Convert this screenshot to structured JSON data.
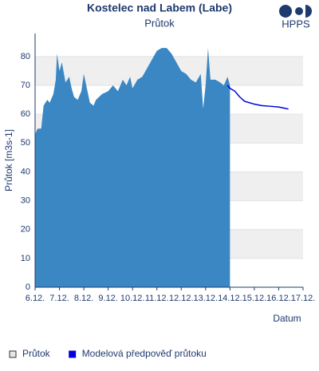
{
  "chart_data": {
    "type": "area",
    "title": "Kostelec nad Labem (Labe)",
    "subtitle": "Průtok",
    "logo": "HPPS",
    "x_label": "Datum",
    "y_label": "Průtok [m3s-1]",
    "xlim": [
      6,
      17
    ],
    "ylim": [
      0,
      88
    ],
    "xticks": [
      {
        "value": 6,
        "label": "6.12."
      },
      {
        "value": 7,
        "label": "7.12."
      },
      {
        "value": 8,
        "label": "8.12."
      },
      {
        "value": 9,
        "label": "9.12."
      },
      {
        "value": 10,
        "label": "10.12."
      },
      {
        "value": 11,
        "label": "11.12."
      },
      {
        "value": 12,
        "label": "12.12."
      },
      {
        "value": 13,
        "label": "13.12."
      },
      {
        "value": 14,
        "label": "14.12."
      },
      {
        "value": 15,
        "label": "15.12."
      },
      {
        "value": 16,
        "label": "16.12."
      },
      {
        "value": 17,
        "label": "17.12."
      }
    ],
    "yticks": [
      0,
      10,
      20,
      30,
      40,
      50,
      60,
      70,
      80
    ],
    "grid": true,
    "series": [
      {
        "name": "Průtok",
        "color": "#3a87c4",
        "kind": "area",
        "x": [
          6.0,
          6.1,
          6.25,
          6.35,
          6.5,
          6.6,
          6.75,
          6.85,
          6.9,
          7.0,
          7.1,
          7.25,
          7.4,
          7.5,
          7.6,
          7.75,
          7.9,
          8.0,
          8.1,
          8.25,
          8.4,
          8.5,
          8.75,
          9.0,
          9.2,
          9.4,
          9.6,
          9.75,
          9.9,
          10.0,
          10.2,
          10.4,
          10.6,
          10.8,
          11.0,
          11.2,
          11.4,
          11.6,
          11.8,
          12.0,
          12.2,
          12.4,
          12.6,
          12.8,
          12.9,
          13.0,
          13.1,
          13.2,
          13.4,
          13.6,
          13.75,
          13.9,
          14.0
        ],
        "values": [
          53,
          55,
          55,
          63,
          65,
          64,
          67,
          72,
          81,
          75,
          78,
          71,
          73,
          69,
          66,
          65,
          68,
          74,
          70,
          64,
          63,
          65,
          67,
          68,
          70,
          68,
          72,
          70,
          73,
          69,
          72,
          73,
          76,
          79,
          82,
          83,
          83,
          81,
          78,
          75,
          74,
          72,
          71,
          74,
          62,
          70,
          83,
          72,
          72,
          71,
          70,
          73,
          70
        ]
      },
      {
        "name": "Modelová předpověď průtoku",
        "color": "#0000e0",
        "kind": "line",
        "x": [
          13.9,
          14.0,
          14.2,
          14.4,
          14.6,
          14.8,
          15.0,
          15.3,
          15.6,
          16.0,
          16.3,
          16.4
        ],
        "values": [
          70,
          69,
          68,
          66,
          64.5,
          64,
          63.5,
          63,
          62.8,
          62.5,
          62,
          61.8
        ]
      }
    ]
  }
}
